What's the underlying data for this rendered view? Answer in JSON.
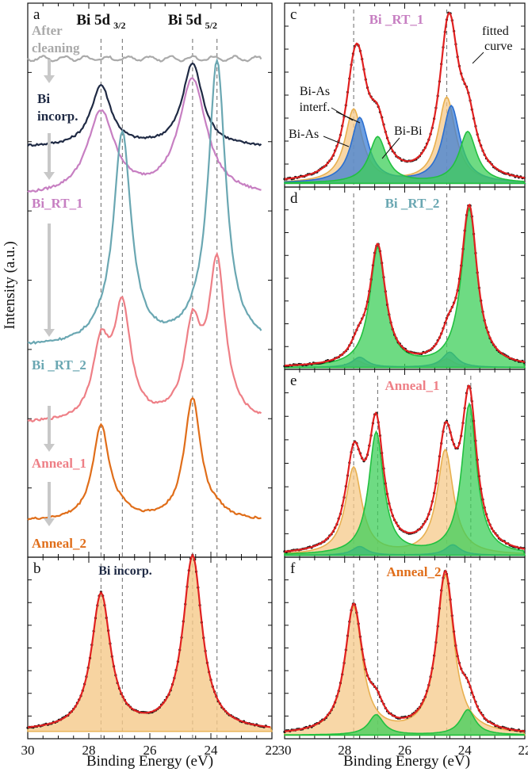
{
  "figure": {
    "ylabel": "Intensity (a.u.)",
    "xlabel": "Binding Energy (eV)",
    "colors": {
      "after_cleaning": "#aaaaaa",
      "bi_incorp": "#1f2a44",
      "bi_rt_1": "#c77fc2",
      "bi_rt_2": "#6aa7b2",
      "anneal_1": "#ee7f86",
      "anneal_2": "#e06e1a",
      "fit": "#e02020",
      "comp_orange": "#f5c98a",
      "comp_blue": "#3d7fd6",
      "comp_green": "#3ecf5a",
      "dashed": "#777777",
      "arrow": "#c8c8c8"
    }
  },
  "chart_data": [
    {
      "panel": "a",
      "type": "line",
      "title": "",
      "xlabel": "Binding Energy (eV)",
      "ylabel": "Intensity (a.u.)",
      "xlim": [
        30,
        22
      ],
      "xticks": [
        "30",
        "28",
        "26",
        "24",
        "22"
      ],
      "peak_labels": [
        {
          "main": "Bi 5d",
          "sub": "3/2",
          "position_ev": 27.6
        },
        {
          "main": "Bi 5d",
          "sub": "5/2",
          "position_ev": 24.6
        }
      ],
      "dashed_lines_ev": [
        27.6,
        26.9,
        24.6,
        23.8
      ],
      "series": [
        {
          "name": "After cleaning",
          "label_lines": [
            "After",
            "cleaning"
          ],
          "color_key": "after_cleaning",
          "offset": 0.9,
          "peaks": []
        },
        {
          "name": "Bi incorp.",
          "label_lines": [
            "Bi",
            "incorp."
          ],
          "color_key": "bi_incorp",
          "offset": 0.74,
          "peaks": [
            [
              27.6,
              0.4,
              0.11
            ],
            [
              24.6,
              0.4,
              0.15
            ]
          ]
        },
        {
          "name": "Bi_RT_1",
          "label_lines": [
            "Bi_RT_1"
          ],
          "color_key": "bi_rt_1",
          "offset": 0.65,
          "peaks": [
            [
              27.6,
              0.55,
              0.15
            ],
            [
              24.6,
              0.55,
              0.21
            ]
          ]
        },
        {
          "name": "Bi _RT_2",
          "label_lines": [
            "Bi _RT_2"
          ],
          "color_key": "bi_rt_2",
          "offset": 0.38,
          "peaks": [
            [
              26.9,
              0.35,
              0.38
            ],
            [
              23.8,
              0.35,
              0.51
            ],
            [
              27.6,
              0.4,
              0.01
            ],
            [
              24.6,
              0.4,
              0.01
            ]
          ]
        },
        {
          "name": "Anneal_1",
          "label_lines": [
            "Anneal_1"
          ],
          "color_key": "anneal_1",
          "offset": 0.24,
          "peaks": [
            [
              26.9,
              0.33,
              0.2
            ],
            [
              23.8,
              0.33,
              0.28
            ],
            [
              27.6,
              0.33,
              0.13
            ],
            [
              24.6,
              0.33,
              0.16
            ]
          ]
        },
        {
          "name": "Anneal_2",
          "label_lines": [
            "Anneal_2"
          ],
          "color_key": "anneal_2",
          "offset": 0.065,
          "peaks": [
            [
              27.6,
              0.33,
              0.17
            ],
            [
              24.6,
              0.33,
              0.22
            ],
            [
              26.9,
              0.3,
              0.01
            ],
            [
              23.8,
              0.3,
              0.01
            ]
          ]
        }
      ]
    },
    {
      "panel": "b",
      "type": "area",
      "title": "Bi incorp.",
      "xlim": [
        30,
        22
      ],
      "xticks": [
        "30",
        "28",
        "26",
        "24",
        "22"
      ],
      "dashed_lines_ev": [
        27.6,
        26.9,
        24.6,
        23.8
      ],
      "components": [
        {
          "name": "Bi-As",
          "color_key": "comp_orange",
          "peaks": [
            [
              27.6,
              0.38,
              0.75
            ],
            [
              24.6,
              0.38,
              0.96
            ]
          ]
        }
      ],
      "baseline": 0.04
    },
    {
      "panel": "c",
      "type": "area",
      "title": "Bi _RT_1",
      "xlim": [
        30,
        22
      ],
      "xticks": [
        "30",
        "28",
        "26",
        "24",
        "22"
      ],
      "dashed_lines_ev": [
        27.7,
        24.6
      ],
      "annotations": [
        "Bi-As",
        "interf.",
        "Bi-As",
        "Bi-Bi",
        "fitted",
        "curve"
      ],
      "components": [
        {
          "name": "Bi-As interf.",
          "color_key": "comp_orange",
          "peaks": [
            [
              27.7,
              0.35,
              0.43
            ],
            [
              24.6,
              0.35,
              0.5
            ]
          ]
        },
        {
          "name": "Bi-As",
          "color_key": "comp_blue",
          "peaks": [
            [
              27.5,
              0.35,
              0.38
            ],
            [
              24.45,
              0.35,
              0.45
            ]
          ]
        },
        {
          "name": "Bi-Bi",
          "color_key": "comp_green",
          "peaks": [
            [
              26.9,
              0.35,
              0.27
            ],
            [
              23.9,
              0.35,
              0.3
            ]
          ]
        }
      ],
      "baseline": 0.02
    },
    {
      "panel": "d",
      "type": "area",
      "title": "Bi _RT_2",
      "xlim": [
        30,
        22
      ],
      "xticks": [
        "30",
        "28",
        "26",
        "24",
        "22"
      ],
      "dashed_lines_ev": [
        27.7,
        24.6
      ],
      "components": [
        {
          "name": "Bi-As interf.",
          "color_key": "comp_orange",
          "peaks": [
            [
              27.6,
              0.3,
              0.04
            ],
            [
              24.6,
              0.3,
              0.05
            ]
          ]
        },
        {
          "name": "Bi-As",
          "color_key": "comp_blue",
          "peaks": [
            [
              27.5,
              0.3,
              0.06
            ],
            [
              24.5,
              0.3,
              0.09
            ]
          ]
        },
        {
          "name": "Bi-Bi",
          "color_key": "comp_green",
          "peaks": [
            [
              26.9,
              0.32,
              0.7
            ],
            [
              23.85,
              0.32,
              0.93
            ]
          ]
        }
      ],
      "baseline": 0.01
    },
    {
      "panel": "e",
      "type": "area",
      "title": "Anneal_1",
      "xlim": [
        30,
        22
      ],
      "xticks": [
        "30",
        "28",
        "26",
        "24",
        "22"
      ],
      "dashed_lines_ev": [
        27.7,
        26.9,
        24.6,
        23.8
      ],
      "components": [
        {
          "name": "Bi-As interf.",
          "color_key": "comp_orange",
          "peaks": [
            [
              27.7,
              0.33,
              0.5
            ],
            [
              24.65,
              0.33,
              0.6
            ]
          ]
        },
        {
          "name": "Bi-As",
          "color_key": "comp_blue",
          "peaks": [
            [
              27.5,
              0.3,
              0.05
            ],
            [
              24.4,
              0.3,
              0.06
            ]
          ]
        },
        {
          "name": "Bi-Bi",
          "color_key": "comp_green",
          "peaks": [
            [
              26.95,
              0.3,
              0.7
            ],
            [
              23.85,
              0.3,
              0.86
            ]
          ]
        }
      ],
      "baseline": 0.01
    },
    {
      "panel": "f",
      "type": "area",
      "title": "Anneal_2",
      "xlim": [
        30,
        22
      ],
      "xticks": [
        "30",
        "28",
        "26",
        "24",
        "22"
      ],
      "dashed_lines_ev": [
        27.7,
        26.9,
        24.6,
        23.8
      ],
      "components": [
        {
          "name": "Bi-As",
          "color_key": "comp_orange",
          "peaks": [
            [
              27.7,
              0.35,
              0.75
            ],
            [
              24.65,
              0.35,
              0.94
            ]
          ]
        },
        {
          "name": "Bi-Bi",
          "color_key": "comp_green",
          "peaks": [
            [
              26.95,
              0.3,
              0.12
            ],
            [
              23.9,
              0.3,
              0.15
            ]
          ]
        }
      ],
      "baseline": 0.02
    }
  ]
}
